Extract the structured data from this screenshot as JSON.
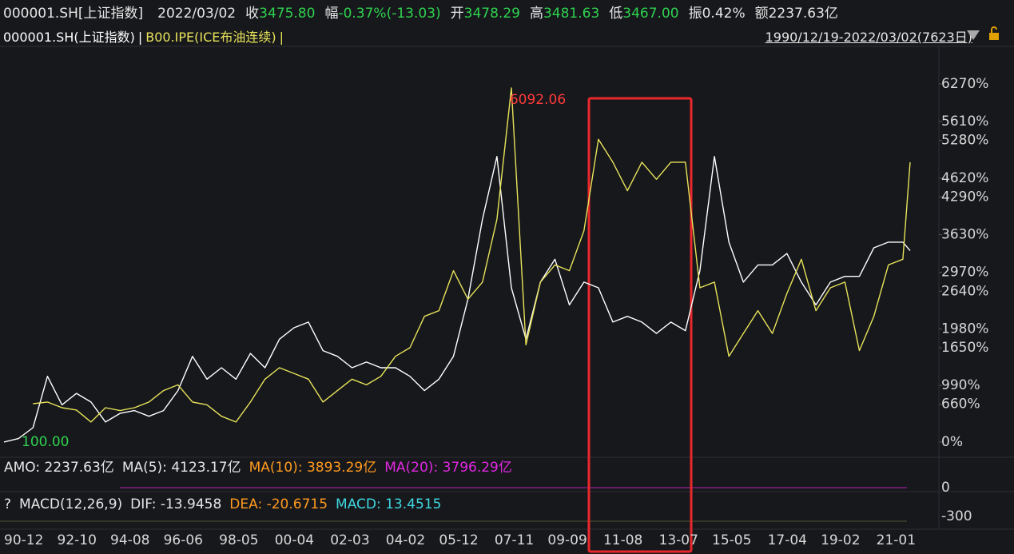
{
  "header": {
    "symbol": "000001.SH[上证指数]",
    "date": "2022/03/02",
    "fields": [
      {
        "label": "收",
        "value": "3475.80",
        "color": "#2fd24f"
      },
      {
        "label": "幅",
        "value": "-0.37%(-13.03)",
        "color": "#2fd24f"
      },
      {
        "label": "开",
        "value": "3478.29",
        "color": "#2fd24f"
      },
      {
        "label": "高",
        "value": "3481.63",
        "color": "#2fd24f"
      },
      {
        "label": "低",
        "value": "3467.00",
        "color": "#2fd24f"
      },
      {
        "label": "振",
        "value": "0.42%",
        "color": "#e6e6e6"
      },
      {
        "label": "额",
        "value": "2237.63亿",
        "color": "#e6e6e6"
      }
    ]
  },
  "legend_separator": "|",
  "date_range": "1990/12/19-2022/03/02(7623日)",
  "chart_data": [
    {
      "type": "line",
      "x": [
        "90-12",
        "91-06",
        "91-12",
        "92-06",
        "92-12",
        "93-06",
        "93-12",
        "94-06",
        "94-12",
        "95-06",
        "95-12",
        "96-06",
        "96-12",
        "97-06",
        "97-12",
        "98-06",
        "98-12",
        "99-06",
        "99-12",
        "00-06",
        "00-12",
        "01-06",
        "01-12",
        "02-06",
        "02-12",
        "03-06",
        "03-12",
        "04-06",
        "04-12",
        "05-06",
        "05-12",
        "06-06",
        "06-12",
        "07-06",
        "07-12",
        "08-06",
        "08-12",
        "09-06",
        "09-12",
        "10-06",
        "10-12",
        "11-06",
        "11-12",
        "12-06",
        "12-12",
        "13-06",
        "13-12",
        "14-06",
        "14-12",
        "15-06",
        "15-12",
        "16-06",
        "16-12",
        "17-06",
        "17-12",
        "18-06",
        "18-12",
        "19-06",
        "19-12",
        "20-06",
        "20-12",
        "21-06",
        "21-12",
        "22-03"
      ],
      "series": [
        {
          "name": "000001.SH(上证指数)",
          "color": "#ffffff",
          "values": [
            0,
            60,
            250,
            1150,
            650,
            850,
            700,
            350,
            500,
            550,
            450,
            550,
            900,
            1500,
            1100,
            1300,
            1100,
            1550,
            1300,
            1800,
            2000,
            2100,
            1600,
            1500,
            1300,
            1400,
            1300,
            1300,
            1150,
            900,
            1100,
            1500,
            2500,
            3900,
            5000,
            2700,
            1800,
            2800,
            3200,
            2400,
            2800,
            2700,
            2100,
            2200,
            2100,
            1900,
            2100,
            1950,
            3000,
            5000,
            3500,
            2800,
            3100,
            3100,
            3300,
            2800,
            2400,
            2800,
            2900,
            2900,
            3400,
            3500,
            3500,
            3350
          ]
        },
        {
          "name": "B00.IPE(ICE布油连续)",
          "color": "#e8e35a",
          "values": [
            null,
            null,
            670,
            700,
            600,
            560,
            350,
            600,
            550,
            600,
            700,
            900,
            1000,
            700,
            650,
            450,
            350,
            700,
            1100,
            1300,
            1200,
            1100,
            700,
            900,
            1100,
            1000,
            1150,
            1500,
            1650,
            2200,
            2300,
            3000,
            2500,
            2800,
            3900,
            6200,
            1700,
            2800,
            3100,
            3000,
            3700,
            5300,
            4900,
            4400,
            4900,
            4600,
            4900,
            4900,
            2700,
            2800,
            1500,
            1900,
            2300,
            1900,
            2600,
            3200,
            2300,
            2700,
            2800,
            1600,
            2200,
            3100,
            3200,
            4900
          ]
        }
      ],
      "xlim": [
        "90-12",
        "22-03"
      ],
      "xticks": [
        "90-12",
        "92-10",
        "94-08",
        "96-06",
        "98-05",
        "00-04",
        "02-03",
        "04-02",
        "05-12",
        "07-11",
        "09-09",
        "11-08",
        "13-07",
        "15-05",
        "17-04",
        "19-02",
        "21-01"
      ],
      "ylim": [
        -240,
        6900
      ],
      "yticks": [
        {
          "value": 0,
          "label": "0%"
        },
        {
          "value": 660,
          "label": "660%"
        },
        {
          "value": 990,
          "label": "990%"
        },
        {
          "value": 1650,
          "label": "1650%"
        },
        {
          "value": 1980,
          "label": "1980%"
        },
        {
          "value": 2640,
          "label": "2640%"
        },
        {
          "value": 2970,
          "label": "2970%"
        },
        {
          "value": 3630,
          "label": "3630%"
        },
        {
          "value": 4290,
          "label": "4290%"
        },
        {
          "value": 4620,
          "label": "4620%"
        },
        {
          "value": 5280,
          "label": "5280%"
        },
        {
          "value": 5610,
          "label": "5610%"
        },
        {
          "value": 6270,
          "label": "6270%"
        }
      ],
      "annotations": [
        {
          "text": "6092.06",
          "x": "07-10",
          "y": 5992,
          "color": "#ff3b3b"
        },
        {
          "text": "100.00",
          "x": "90-12",
          "y": 0,
          "color": "#2fd24f"
        }
      ]
    }
  ],
  "panels": {
    "amo": {
      "labels": [
        {
          "text": "AMO: 2237.63亿",
          "color": "#e6e6e6"
        },
        {
          "text": "MA(5): 4123.17亿",
          "color": "#e6e6e6"
        },
        {
          "text": "MA(10): 3893.29亿",
          "color": "#ff9a1f"
        },
        {
          "text": "MA(20): 3796.29亿",
          "color": "#e028e0"
        }
      ],
      "yticks": [
        0
      ]
    },
    "macd": {
      "labels": [
        {
          "text": "?",
          "color": "#e6e6e6"
        },
        {
          "text": "MACD(12,26,9)",
          "color": "#e6e6e6"
        },
        {
          "text": "DIF: -13.9458",
          "color": "#e6e6e6"
        },
        {
          "text": "DEA: -20.6715",
          "color": "#ff9a1f"
        },
        {
          "text": "MACD: 13.4515",
          "color": "#3fd7e0"
        }
      ],
      "yticks": [
        -300
      ]
    }
  }
}
